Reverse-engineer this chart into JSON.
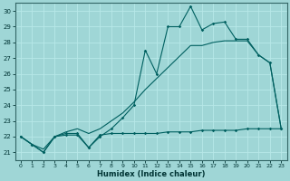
{
  "xlabel": "Humidex (Indice chaleur)",
  "xlim": [
    -0.5,
    23.5
  ],
  "ylim": [
    20.5,
    30.5
  ],
  "yticks": [
    21,
    22,
    23,
    24,
    25,
    26,
    27,
    28,
    29,
    30
  ],
  "xticks": [
    0,
    1,
    2,
    3,
    4,
    5,
    6,
    7,
    8,
    9,
    10,
    11,
    12,
    13,
    14,
    15,
    16,
    17,
    18,
    19,
    20,
    21,
    22,
    23
  ],
  "bg_color": "#9fd6d6",
  "grid_color": "#b8e8e8",
  "line_color": "#006060",
  "flat_x": [
    0,
    1,
    2,
    3,
    4,
    5,
    6,
    7,
    8,
    9,
    10,
    11,
    12,
    13,
    14,
    15,
    16,
    17,
    18,
    19,
    20,
    21,
    22,
    23
  ],
  "flat_y": [
    22,
    21.5,
    21.0,
    22.0,
    22.1,
    22.1,
    21.3,
    22.1,
    22.2,
    22.2,
    22.2,
    22.2,
    22.2,
    22.3,
    22.3,
    22.3,
    22.4,
    22.4,
    22.4,
    22.4,
    22.5,
    22.5,
    22.5,
    22.5
  ],
  "diag_x": [
    0,
    1,
    2,
    3,
    4,
    5,
    6,
    7,
    8,
    9,
    10,
    11,
    12,
    13,
    14,
    15,
    16,
    17,
    18,
    19,
    20,
    21,
    22,
    23
  ],
  "diag_y": [
    22.0,
    21.5,
    21.2,
    22.0,
    22.3,
    22.5,
    22.2,
    22.5,
    23.0,
    23.5,
    24.2,
    25.0,
    25.7,
    26.4,
    27.1,
    27.8,
    27.8,
    28.0,
    28.1,
    28.1,
    28.1,
    27.2,
    26.7,
    22.5
  ],
  "jagged_x": [
    0,
    1,
    2,
    3,
    4,
    5,
    6,
    7,
    8,
    9,
    10,
    11,
    12,
    13,
    14,
    15,
    16,
    17,
    18,
    19,
    20,
    21,
    22,
    23
  ],
  "jagged_y": [
    22.0,
    21.5,
    21.0,
    22.0,
    22.2,
    22.2,
    21.3,
    22.0,
    22.5,
    23.2,
    24.0,
    27.5,
    26.0,
    29.0,
    29.0,
    30.3,
    28.8,
    29.2,
    29.3,
    28.2,
    28.2,
    27.2,
    26.7,
    22.5
  ]
}
